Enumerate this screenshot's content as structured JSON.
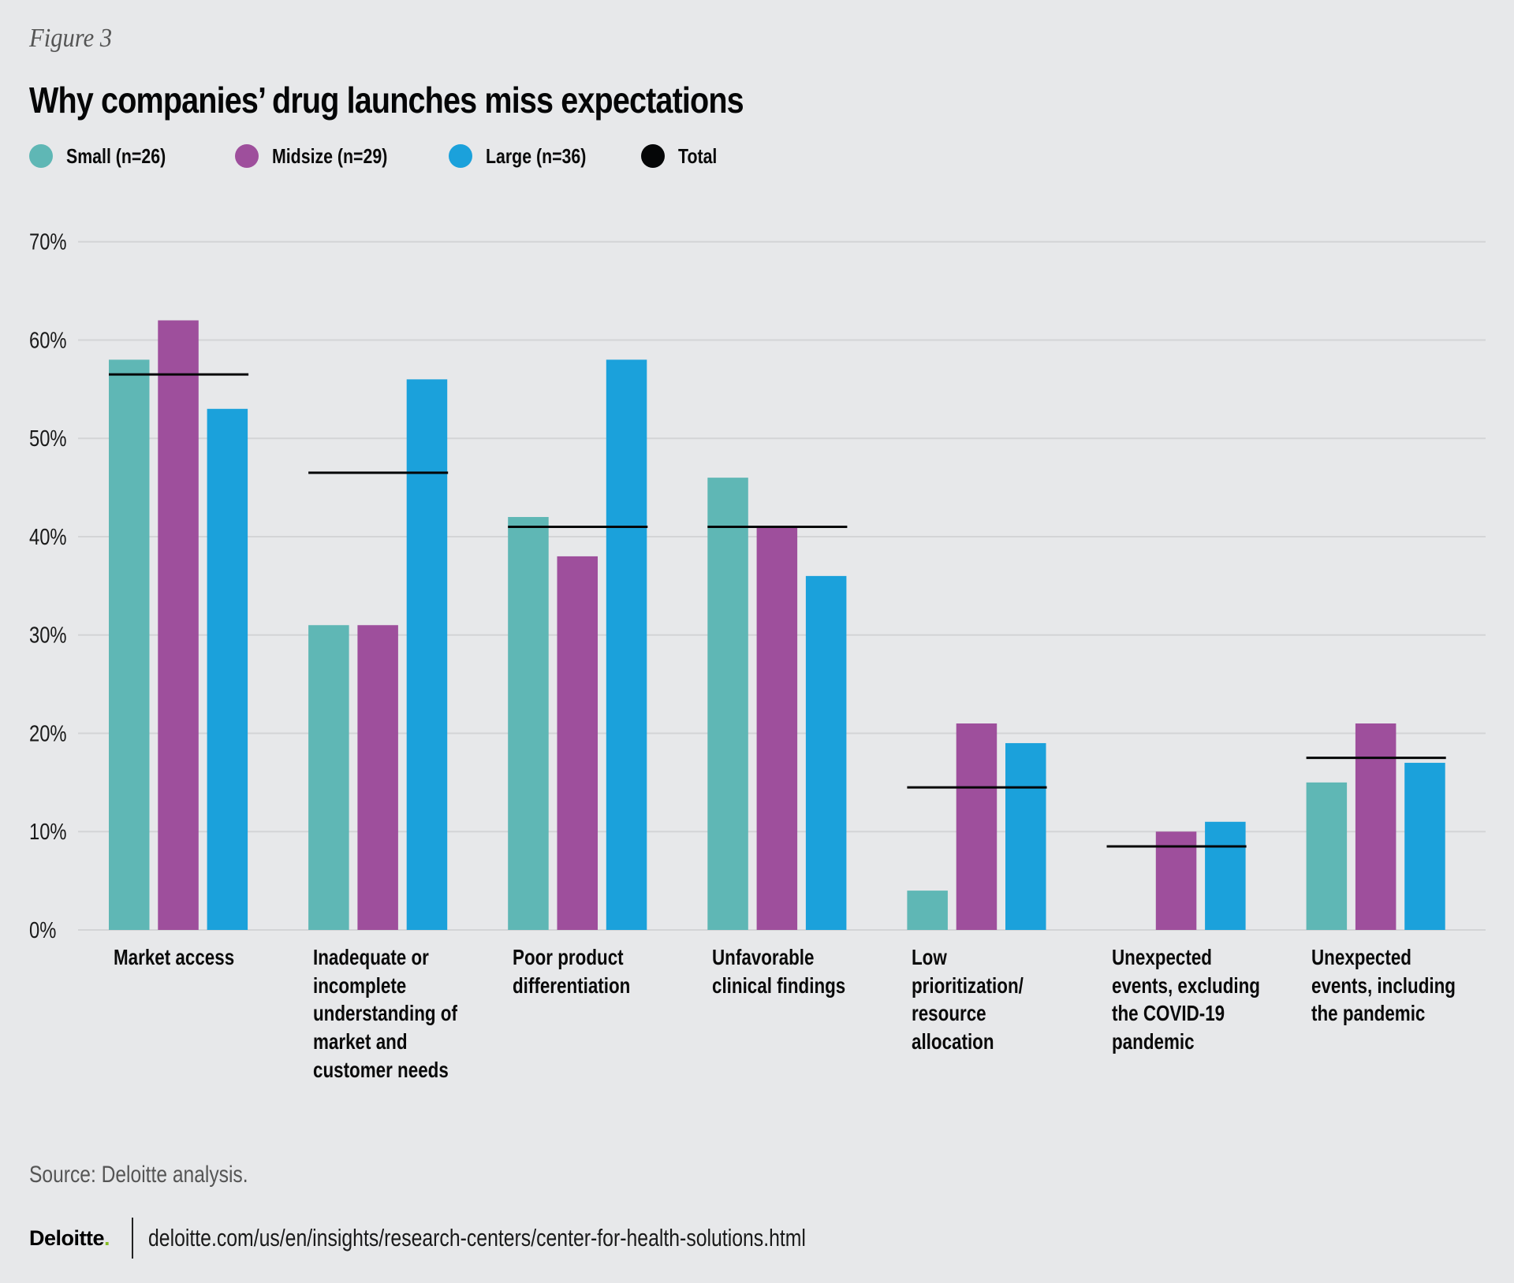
{
  "figure_label": "Figure 3",
  "title": "Why companies’ drug launches miss expectations",
  "legend": [
    {
      "label": "Small (n=26)",
      "color": "#5fb7b5",
      "series": "small"
    },
    {
      "label": "Midsize (n=29)",
      "color": "#9e4f9c",
      "series": "midsize"
    },
    {
      "label": "Large (n=36)",
      "color": "#1ba1db",
      "series": "large"
    },
    {
      "label": "Total",
      "color": "#050607",
      "series": "total"
    }
  ],
  "chart_data": {
    "type": "bar",
    "title": "Why companies’ drug launches miss expectations",
    "xlabel": "",
    "ylabel": "",
    "ylim": [
      0,
      70
    ],
    "yticks": [
      0,
      10,
      20,
      30,
      40,
      50,
      60,
      70
    ],
    "ytick_labels": [
      "0%",
      "10%",
      "20%",
      "30%",
      "40%",
      "50%",
      "60%",
      "70%"
    ],
    "grid": true,
    "legend_position": "top-left",
    "categories": [
      "Market access",
      "Inadequate or incomplete understanding of market and customer needs",
      "Poor product differentiation",
      "Unfavorable clinical findings",
      "Low prioritization/ resource allocation",
      "Unexpected events, excluding the COVID-19 pandemic",
      "Unexpected events, including the pandemic"
    ],
    "category_label_lines": [
      [
        "Market access"
      ],
      [
        "Inadequate or",
        "incomplete",
        "understanding of",
        "market and",
        "customer needs"
      ],
      [
        "Poor product",
        "differentiation"
      ],
      [
        "Unfavorable",
        "clinical findings"
      ],
      [
        "Low",
        "prioritization/",
        "resource",
        "allocation"
      ],
      [
        "Unexpected",
        "events, excluding",
        "the COVID-19",
        "pandemic"
      ],
      [
        "Unexpected",
        "events, including",
        "the pandemic"
      ]
    ],
    "series": [
      {
        "name": "Small (n=26)",
        "key": "small",
        "color": "#5fb7b5",
        "values": [
          58,
          31,
          42,
          46,
          4,
          0,
          15
        ]
      },
      {
        "name": "Midsize (n=29)",
        "key": "midsize",
        "color": "#9e4f9c",
        "values": [
          62,
          31,
          38,
          41,
          21,
          10,
          21
        ]
      },
      {
        "name": "Large (n=36)",
        "key": "large",
        "color": "#1ba1db",
        "values": [
          53,
          56,
          58,
          36,
          19,
          11,
          17
        ]
      }
    ],
    "total": {
      "name": "Total",
      "color": "#050607",
      "values": [
        56.5,
        46.5,
        41,
        41,
        14.5,
        8.5,
        17.5
      ]
    },
    "unit": "%"
  },
  "source": "Source: Deloitte analysis.",
  "footer": {
    "logo_text": "Deloitte",
    "logo_dot": ".",
    "logo_dot_color": "#86bc25",
    "url": "deloitte.com/us/en/insights/research-centers/center-for-health-solutions.html"
  }
}
